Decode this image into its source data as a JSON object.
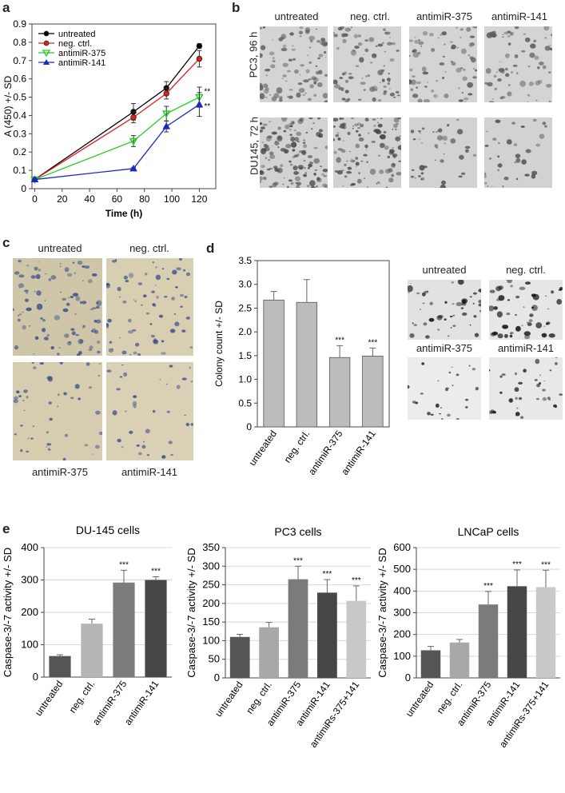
{
  "panels": {
    "a": "a",
    "b": "b",
    "c": "c",
    "d": "d",
    "e": "e"
  },
  "panel_b": {
    "columns": [
      "untreated",
      "neg. ctrl.",
      "antimiR-375",
      "antimiR-141"
    ],
    "rows": [
      "PC3, 96 h",
      "DU145, 72 h"
    ]
  },
  "panel_c": {
    "top_labels": [
      "untreated",
      "neg. ctrl."
    ],
    "bottom_labels": [
      "antimiR-375",
      "antimiR-141"
    ]
  },
  "panel_d_images": {
    "labels": [
      "untreated",
      "neg. ctrl.",
      "antimiR-375",
      "antimiR-141"
    ]
  },
  "chart_data": [
    {
      "id": "a",
      "type": "line",
      "xlabel": "Time (h)",
      "ylabel": "A (450) +/- SD",
      "xlim": [
        0,
        130
      ],
      "ylim": [
        0,
        0.9
      ],
      "xticks": [
        "0",
        "20",
        "40",
        "60",
        "80",
        "100",
        "120"
      ],
      "yticks": [
        "0",
        "0.1",
        "0.2",
        "0.3",
        "0.4",
        "0.5",
        "0.6",
        "0.7",
        "0.8",
        "0.9"
      ],
      "x": [
        0,
        72,
        96,
        120
      ],
      "legend_position": "top-left",
      "series": [
        {
          "name": "untreated",
          "color": "#000000",
          "marker": "circle",
          "values": [
            0.05,
            0.42,
            0.55,
            0.78
          ],
          "errors": [
            0.005,
            0.045,
            0.035,
            0.012
          ]
        },
        {
          "name": "neg. ctrl.",
          "color": "#e02020",
          "marker": "circle",
          "values": [
            0.05,
            0.39,
            0.52,
            0.71
          ],
          "errors": [
            0.005,
            0.03,
            0.03,
            0.045
          ]
        },
        {
          "name": "antimiR-375",
          "color": "#22cc22",
          "marker": "triangle-down",
          "values": [
            0.05,
            0.26,
            0.41,
            0.5
          ],
          "errors": [
            0.005,
            0.03,
            0.04,
            0.055
          ]
        },
        {
          "name": "antimiR-141",
          "color": "#1a2bbf",
          "marker": "triangle-up",
          "values": [
            0.05,
            0.11,
            0.34,
            0.46
          ],
          "errors": [
            0.005,
            0.005,
            0.03,
            0.065
          ]
        }
      ],
      "annotations": [
        "**",
        "**"
      ]
    },
    {
      "id": "d",
      "type": "bar",
      "ylabel": "Colony count +/- SD",
      "ylim": [
        0,
        3.5
      ],
      "yticks": [
        "0",
        "0.5",
        "1.0",
        "1.5",
        "2.0",
        "2.5",
        "3.0",
        "3.5"
      ],
      "categories": [
        "untreated",
        "neg. ctrl.",
        "antimiR-375",
        "antimiR-141"
      ],
      "values": [
        2.67,
        2.62,
        1.46,
        1.49
      ],
      "errors": [
        0.18,
        0.48,
        0.25,
        0.17
      ],
      "significance": [
        "",
        "",
        "***",
        "***"
      ],
      "color": "#bcbcbc"
    },
    {
      "id": "e1",
      "type": "bar",
      "title": "DU-145 cells",
      "ylabel": "Caspase-3/-7 activity +/- SD",
      "ylim": [
        0,
        400
      ],
      "yticks": [
        "0",
        "100",
        "200",
        "300",
        "400"
      ],
      "categories": [
        "untreated",
        "neg. ctrl.",
        "antimiR-375",
        "antimiR-141"
      ],
      "values": [
        65,
        165,
        292,
        300
      ],
      "errors": [
        4,
        14,
        38,
        10
      ],
      "significance": [
        "",
        "",
        "***",
        "***"
      ],
      "colors": [
        "#555555",
        "#b5b5b5",
        "#7b7b7b",
        "#474747"
      ]
    },
    {
      "id": "e2",
      "type": "bar",
      "title": "PC3 cells",
      "ylabel": "Caspase-3/-7 activity +/- SD",
      "ylim": [
        0,
        350
      ],
      "yticks": [
        "0",
        "50",
        "100",
        "150",
        "200",
        "250",
        "300",
        "350"
      ],
      "categories": [
        "untreated",
        "neg. ctrl.",
        "antimiR-375",
        "antimiR-141",
        "antimiRs-375+141"
      ],
      "values": [
        110,
        136,
        265,
        229,
        207
      ],
      "errors": [
        7,
        13,
        35,
        35,
        40
      ],
      "significance": [
        "",
        "",
        "***",
        "***",
        "***"
      ],
      "colors": [
        "#555555",
        "#a8a8a8",
        "#7b7b7b",
        "#474747",
        "#c9c9c9"
      ]
    },
    {
      "id": "e3",
      "type": "bar",
      "title": "LNCaP cells",
      "ylabel": "Caspase-3/-7 activity +/- SD",
      "ylim": [
        0,
        600
      ],
      "yticks": [
        "0",
        "100",
        "200",
        "300",
        "400",
        "500",
        "600"
      ],
      "categories": [
        "untreated",
        "neg. ctrl.",
        "antimiR-375",
        "antimiR-141",
        "antimiRs-375+141"
      ],
      "values": [
        127,
        163,
        338,
        422,
        418
      ],
      "errors": [
        18,
        14,
        60,
        75,
        78
      ],
      "significance": [
        "",
        "",
        "***",
        "***",
        "***"
      ],
      "colors": [
        "#555555",
        "#a8a8a8",
        "#7b7b7b",
        "#474747",
        "#c9c9c9"
      ]
    }
  ]
}
